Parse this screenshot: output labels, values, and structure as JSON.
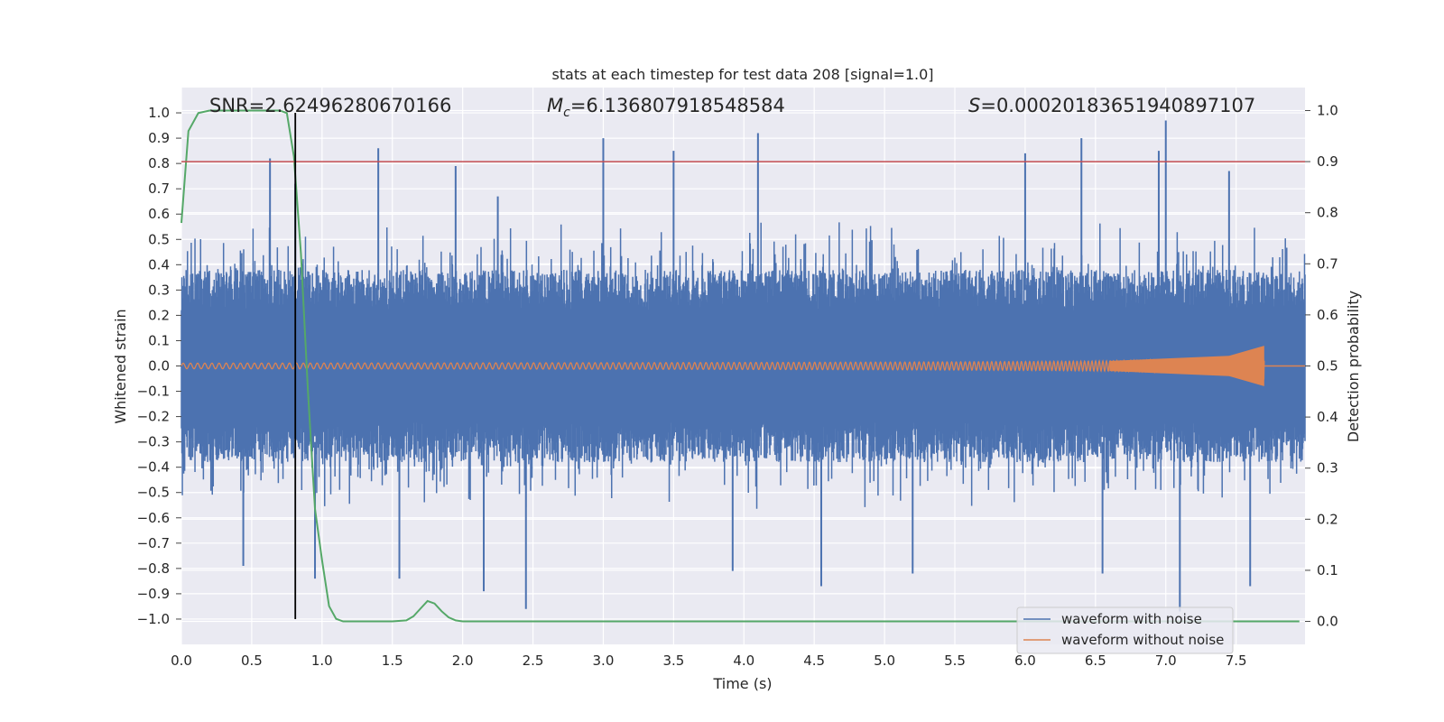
{
  "chart_data": {
    "type": "line",
    "title": "stats at each timestep for test data 208 [signal=1.0]",
    "xlabel": "Time (s)",
    "ylabel": "Whitened strain",
    "y2label": "Detection probability",
    "xlim": [
      0.0,
      7.99
    ],
    "ylim": [
      -1.1,
      1.1
    ],
    "y2lim": [
      -0.045,
      1.045
    ],
    "xticks": [
      "0.0",
      "0.5",
      "1.0",
      "1.5",
      "2.0",
      "2.5",
      "3.0",
      "3.5",
      "4.0",
      "4.5",
      "5.0",
      "5.5",
      "6.0",
      "6.5",
      "7.0",
      "7.5"
    ],
    "yticks": [
      "1.0",
      "0.9",
      "0.8",
      "0.7",
      "0.6",
      "0.5",
      "0.4",
      "0.3",
      "0.2",
      "0.1",
      "0.0",
      "−0.1",
      "−0.2",
      "−0.3",
      "−0.4",
      "−0.5",
      "−0.6",
      "−0.7",
      "−0.8",
      "−0.9",
      "−1.0"
    ],
    "y2ticks": [
      "1.0",
      "0.9",
      "0.8",
      "0.7",
      "0.6",
      "0.5",
      "0.4",
      "0.3",
      "0.2",
      "0.1",
      "0.0"
    ],
    "annotations": {
      "snr": "SNR=2.62496280670166",
      "mc_symbol": "M",
      "mc_sub": "c",
      "mc_value": "=6.136807918548584",
      "s_symbol": "S",
      "s_value": "=0.00020183651940897107"
    },
    "threshold_probability": 0.9,
    "marker_time": 0.81,
    "series": [
      {
        "name": "waveform with noise",
        "color": "#4c72b0",
        "description": "noise band mostly within ±0.4, peaks up to about 0.97 and down to about -0.97",
        "peaks": [
          [
            0.63,
            0.82
          ],
          [
            0.81,
            0.72
          ],
          [
            1.4,
            0.86
          ],
          [
            1.95,
            0.79
          ],
          [
            2.25,
            0.67
          ],
          [
            3.0,
            0.9
          ],
          [
            3.5,
            0.85
          ],
          [
            4.1,
            0.92
          ],
          [
            6.0,
            0.84
          ],
          [
            6.4,
            0.9
          ],
          [
            6.95,
            0.85
          ],
          [
            7.0,
            0.97
          ],
          [
            7.45,
            0.77
          ]
        ],
        "troughs": [
          [
            0.44,
            -0.79
          ],
          [
            0.95,
            -0.84
          ],
          [
            1.55,
            -0.84
          ],
          [
            2.15,
            -0.89
          ],
          [
            2.45,
            -0.96
          ],
          [
            3.92,
            -0.81
          ],
          [
            4.55,
            -0.87
          ],
          [
            5.2,
            -0.82
          ],
          [
            6.55,
            -0.82
          ],
          [
            7.1,
            -0.97
          ],
          [
            7.6,
            -0.87
          ]
        ]
      },
      {
        "name": "waveform without noise",
        "color": "#dd8452",
        "description": "chirp: amplitude about 0.01 growing to about 0.08 at merger near t=7.7 s, then zero"
      },
      {
        "name": "detection probability",
        "color": "#55a868",
        "axis": "right",
        "x": [
          0.0,
          0.05,
          0.12,
          0.2,
          0.3,
          0.5,
          0.7,
          0.75,
          0.8,
          0.85,
          0.9,
          0.95,
          1.0,
          1.05,
          1.1,
          1.15,
          1.2,
          1.3,
          1.5,
          1.6,
          1.65,
          1.7,
          1.75,
          1.8,
          1.85,
          1.9,
          1.95,
          2.0,
          2.3,
          3.0,
          4.0,
          5.0,
          6.0,
          7.0,
          7.95
        ],
        "values": [
          0.78,
          0.96,
          0.995,
          1.0,
          1.0,
          1.0,
          1.0,
          0.995,
          0.91,
          0.72,
          0.45,
          0.22,
          0.12,
          0.03,
          0.005,
          0.0,
          0.0,
          0.0,
          0.0,
          0.002,
          0.01,
          0.025,
          0.04,
          0.035,
          0.02,
          0.008,
          0.002,
          0.0,
          0.0,
          0.0,
          0.0,
          0.0,
          0.0,
          0.0,
          0.0
        ]
      }
    ],
    "legend": {
      "position": "lower-right",
      "entries": [
        "waveform with noise",
        "waveform without noise"
      ]
    }
  }
}
